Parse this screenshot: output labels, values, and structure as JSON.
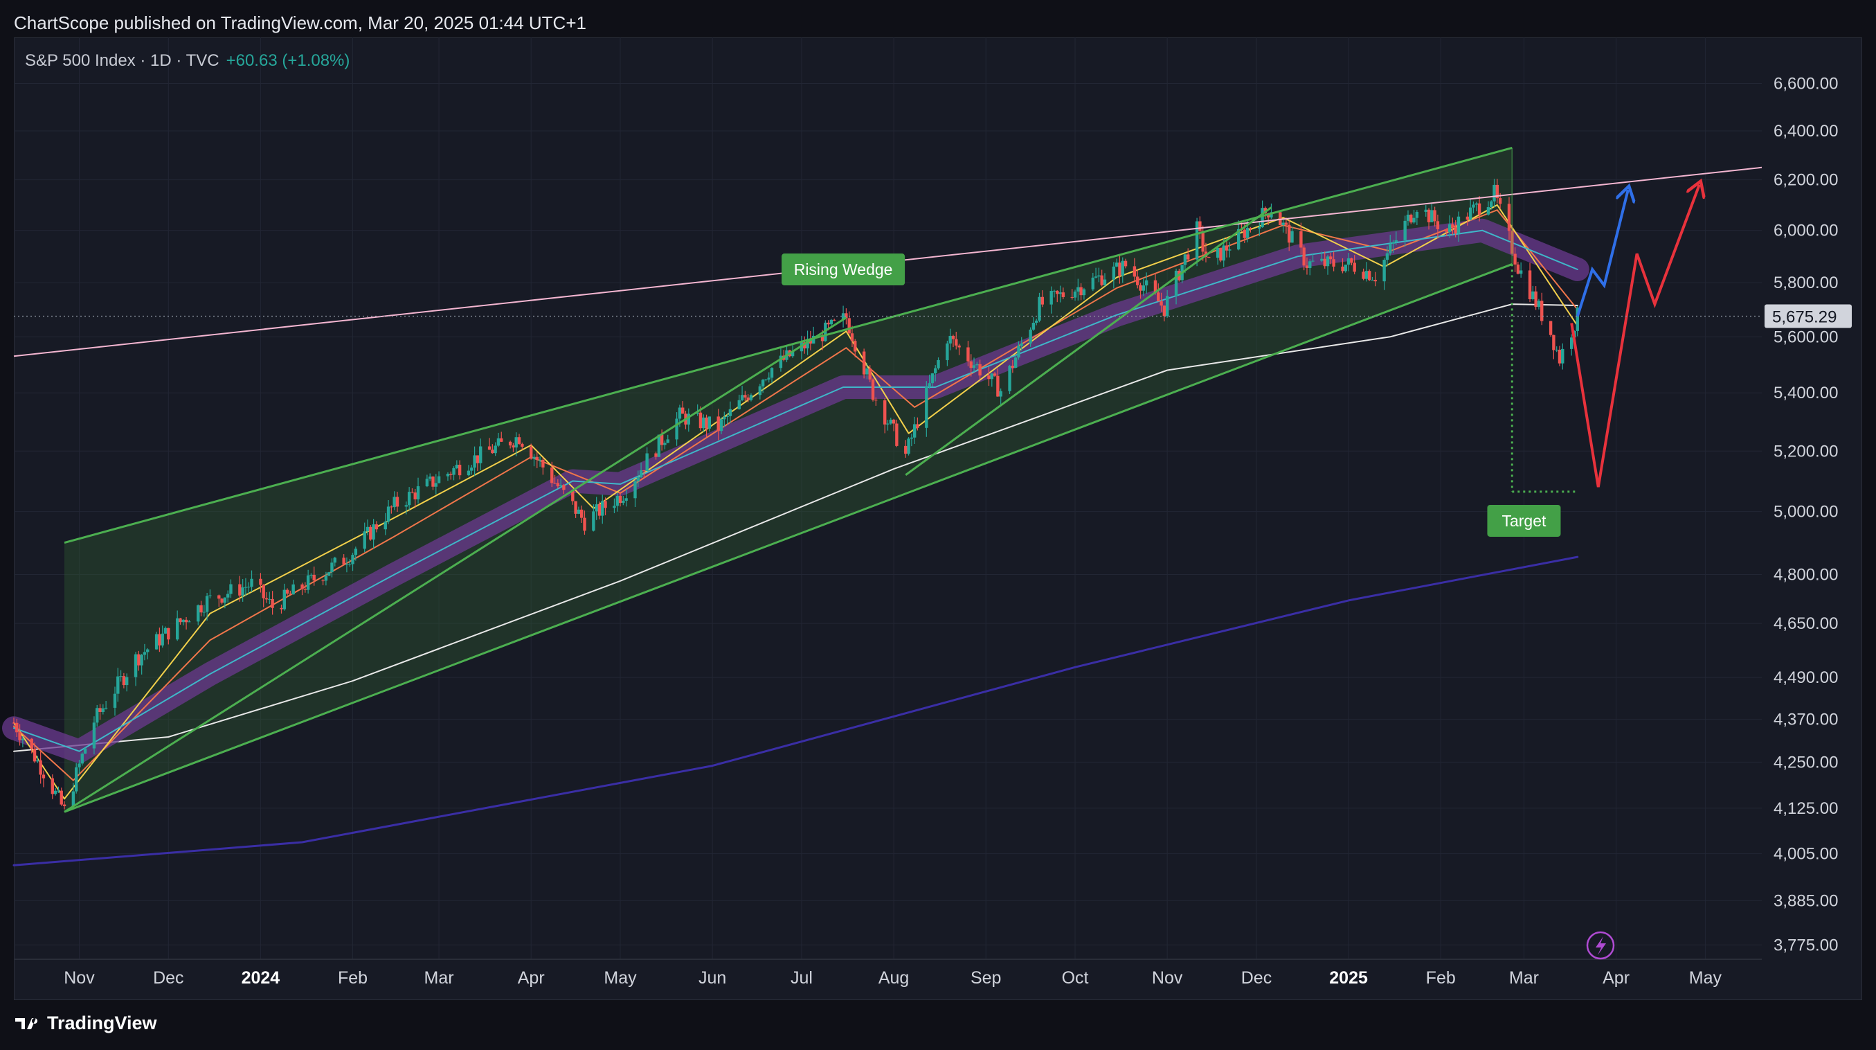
{
  "header": {
    "publish_line": "ChartScope published on TradingView.com, Mar 20, 2025 01:44 UTC+1"
  },
  "legend": {
    "symbol": "S&P 500 Index · 1D · TVC",
    "change": "+60.63 (+1.08%)"
  },
  "footer": {
    "brand": "TradingView"
  },
  "colors": {
    "up": "#26a69a",
    "down": "#ef5350",
    "wedge": "#4caf50",
    "ribbon": "#6b3a8f",
    "ema_fast": "#f2d04b",
    "ema_mid": "#f0764a",
    "ema_cyan": "#3fb7c9",
    "sma_white": "#e8e8e8",
    "sma_long": "#3a2ea5",
    "trend_pink": "#f4b6d1",
    "projection_up": "#2f6fe8",
    "projection_down": "#e8323c",
    "price_tag_bg": "#d1d4dc",
    "label_bg": "#43a047",
    "bolt": "#b04bd3"
  },
  "chart_data": {
    "type": "candlestick",
    "symbol": "S&P 500 Index",
    "interval": "1D",
    "scale": "log",
    "grid": true,
    "last_price": 5675.29,
    "last_price_label": "5,675.29",
    "x_ticks": [
      {
        "date": "2023-11-01",
        "label": "Nov",
        "bold": false
      },
      {
        "date": "2023-12-01",
        "label": "Dec",
        "bold": false
      },
      {
        "date": "2024-01-01",
        "label": "2024",
        "bold": true
      },
      {
        "date": "2024-02-01",
        "label": "Feb",
        "bold": false
      },
      {
        "date": "2024-03-01",
        "label": "Mar",
        "bold": false
      },
      {
        "date": "2024-04-01",
        "label": "Apr",
        "bold": false
      },
      {
        "date": "2024-05-01",
        "label": "May",
        "bold": false
      },
      {
        "date": "2024-06-01",
        "label": "Jun",
        "bold": false
      },
      {
        "date": "2024-07-01",
        "label": "Jul",
        "bold": false
      },
      {
        "date": "2024-08-01",
        "label": "Aug",
        "bold": false
      },
      {
        "date": "2024-09-01",
        "label": "Sep",
        "bold": false
      },
      {
        "date": "2024-10-01",
        "label": "Oct",
        "bold": false
      },
      {
        "date": "2024-11-01",
        "label": "Nov",
        "bold": false
      },
      {
        "date": "2024-12-01",
        "label": "Dec",
        "bold": false
      },
      {
        "date": "2025-01-01",
        "label": "2025",
        "bold": true
      },
      {
        "date": "2025-02-01",
        "label": "Feb",
        "bold": false
      },
      {
        "date": "2025-03-01",
        "label": "Mar",
        "bold": false
      },
      {
        "date": "2025-04-01",
        "label": "Apr",
        "bold": false
      },
      {
        "date": "2025-05-01",
        "label": "May",
        "bold": false
      }
    ],
    "y_ticks": [
      {
        "value": 6600,
        "label": "6,600.00"
      },
      {
        "value": 6400,
        "label": "6,400.00"
      },
      {
        "value": 6200,
        "label": "6,200.00"
      },
      {
        "value": 6000,
        "label": "6,000.00"
      },
      {
        "value": 5800,
        "label": "5,800.00"
      },
      {
        "value": 5600,
        "label": "5,600.00"
      },
      {
        "value": 5400,
        "label": "5,400.00"
      },
      {
        "value": 5200,
        "label": "5,200.00"
      },
      {
        "value": 5000,
        "label": "5,000.00"
      },
      {
        "value": 4800,
        "label": "4,800.00"
      },
      {
        "value": 4650,
        "label": "4,650.00"
      },
      {
        "value": 4490,
        "label": "4,490.00"
      },
      {
        "value": 4370,
        "label": "4,370.00"
      },
      {
        "value": 4250,
        "label": "4,250.00"
      },
      {
        "value": 4125,
        "label": "4,125.00"
      },
      {
        "value": 4005,
        "label": "4,005.00"
      },
      {
        "value": 3885,
        "label": "3,885.00"
      },
      {
        "value": 3775,
        "label": "3,775.00"
      }
    ],
    "close_path": [
      {
        "date": "2023-10-10",
        "value": 4360
      },
      {
        "date": "2023-10-20",
        "value": 4225
      },
      {
        "date": "2023-10-27",
        "value": 4117
      },
      {
        "date": "2023-11-06",
        "value": 4365
      },
      {
        "date": "2023-11-20",
        "value": 4545
      },
      {
        "date": "2023-12-14",
        "value": 4720
      },
      {
        "date": "2023-12-29",
        "value": 4770
      },
      {
        "date": "2024-01-05",
        "value": 4700
      },
      {
        "date": "2024-01-31",
        "value": 4860
      },
      {
        "date": "2024-02-15",
        "value": 5020
      },
      {
        "date": "2024-03-08",
        "value": 5150
      },
      {
        "date": "2024-03-28",
        "value": 5250
      },
      {
        "date": "2024-04-19",
        "value": 4967
      },
      {
        "date": "2024-05-02",
        "value": 5060
      },
      {
        "date": "2024-05-21",
        "value": 5320
      },
      {
        "date": "2024-06-03",
        "value": 5280
      },
      {
        "date": "2024-06-20",
        "value": 5480
      },
      {
        "date": "2024-07-16",
        "value": 5670
      },
      {
        "date": "2024-07-25",
        "value": 5400
      },
      {
        "date": "2024-08-05",
        "value": 5186
      },
      {
        "date": "2024-08-19",
        "value": 5600
      },
      {
        "date": "2024-09-06",
        "value": 5408
      },
      {
        "date": "2024-09-19",
        "value": 5715
      },
      {
        "date": "2024-10-18",
        "value": 5865
      },
      {
        "date": "2024-10-31",
        "value": 5705
      },
      {
        "date": "2024-11-11",
        "value": 6001
      },
      {
        "date": "2024-11-15",
        "value": 5870
      },
      {
        "date": "2024-12-06",
        "value": 6090
      },
      {
        "date": "2024-12-18",
        "value": 5872
      },
      {
        "date": "2025-01-02",
        "value": 5869
      },
      {
        "date": "2025-01-10",
        "value": 5827
      },
      {
        "date": "2025-01-24",
        "value": 6101
      },
      {
        "date": "2025-02-03",
        "value": 5995
      },
      {
        "date": "2025-02-19",
        "value": 6144
      },
      {
        "date": "2025-02-27",
        "value": 5861
      },
      {
        "date": "2025-03-10",
        "value": 5614
      },
      {
        "date": "2025-03-13",
        "value": 5521
      },
      {
        "date": "2025-03-19",
        "value": 5675
      }
    ],
    "wedge_lines": [
      {
        "from": {
          "date": "2023-10-27",
          "value": 4900
        },
        "to": {
          "date": "2025-02-25",
          "value": 6330
        }
      },
      {
        "from": {
          "date": "2023-10-27",
          "value": 4115
        },
        "to": {
          "date": "2025-02-25",
          "value": 5870
        }
      },
      {
        "from": {
          "date": "2023-10-27",
          "value": 4115
        },
        "to": {
          "date": "2024-07-16",
          "value": 5670
        }
      },
      {
        "from": {
          "date": "2024-08-05",
          "value": 5120
        },
        "to": {
          "date": "2024-12-06",
          "value": 6090
        }
      }
    ],
    "trend_line": {
      "from": {
        "date": "2023-10-10",
        "value": 5530
      },
      "to": {
        "date": "2025-05-20",
        "value": 6250
      }
    },
    "annotations": [
      {
        "label": "Rising Wedge",
        "date": "2024-07-15",
        "value": 5850
      },
      {
        "label": "Target",
        "date": "2025-03-01",
        "value": 4970
      }
    ],
    "target_level": {
      "from": {
        "date": "2025-02-25",
        "value": 5065
      },
      "to": {
        "date": "2025-03-19",
        "value": 5065
      }
    },
    "projections": [
      {
        "name": "bull",
        "points": [
          {
            "date": "2025-03-19",
            "value": 5675
          },
          {
            "date": "2025-03-24",
            "value": 5850
          },
          {
            "date": "2025-03-28",
            "value": 5790
          },
          {
            "date": "2025-04-05",
            "value": 6160
          }
        ]
      },
      {
        "name": "bear",
        "points": [
          {
            "date": "2025-03-17",
            "value": 5650
          },
          {
            "date": "2025-03-26",
            "value": 5080
          },
          {
            "date": "2025-04-08",
            "value": 5910
          },
          {
            "date": "2025-04-14",
            "value": 5720
          },
          {
            "date": "2025-04-29",
            "value": 6180
          }
        ]
      }
    ],
    "ma_lines": [
      {
        "name": "sma_long",
        "points": [
          {
            "date": "2023-10-10",
            "value": 3975
          },
          {
            "date": "2024-01-15",
            "value": 4035
          },
          {
            "date": "2024-06-01",
            "value": 4240
          },
          {
            "date": "2024-10-01",
            "value": 4520
          },
          {
            "date": "2025-01-01",
            "value": 4720
          },
          {
            "date": "2025-03-19",
            "value": 4855
          }
        ]
      },
      {
        "name": "sma_white",
        "points": [
          {
            "date": "2023-10-10",
            "value": 4280
          },
          {
            "date": "2023-12-01",
            "value": 4320
          },
          {
            "date": "2024-02-01",
            "value": 4480
          },
          {
            "date": "2024-05-01",
            "value": 4780
          },
          {
            "date": "2024-08-01",
            "value": 5140
          },
          {
            "date": "2024-11-01",
            "value": 5480
          },
          {
            "date": "2025-01-15",
            "value": 5600
          },
          {
            "date": "2025-02-25",
            "value": 5720
          },
          {
            "date": "2025-03-19",
            "value": 5715
          }
        ]
      },
      {
        "name": "ribbon",
        "points": [
          {
            "date": "2023-10-10",
            "value": 4345
          },
          {
            "date": "2023-11-01",
            "value": 4280
          },
          {
            "date": "2023-12-15",
            "value": 4500
          },
          {
            "date": "2024-02-15",
            "value": 4800
          },
          {
            "date": "2024-04-15",
            "value": 5100
          },
          {
            "date": "2024-05-01",
            "value": 5090
          },
          {
            "date": "2024-07-15",
            "value": 5420
          },
          {
            "date": "2024-08-15",
            "value": 5420
          },
          {
            "date": "2024-10-15",
            "value": 5680
          },
          {
            "date": "2024-12-15",
            "value": 5900
          },
          {
            "date": "2025-02-15",
            "value": 6000
          },
          {
            "date": "2025-03-19",
            "value": 5850
          }
        ]
      },
      {
        "name": "ema_mid",
        "points": [
          {
            "date": "2023-10-10",
            "value": 4350
          },
          {
            "date": "2023-10-30",
            "value": 4200
          },
          {
            "date": "2023-12-15",
            "value": 4600
          },
          {
            "date": "2024-02-15",
            "value": 4920
          },
          {
            "date": "2024-04-01",
            "value": 5180
          },
          {
            "date": "2024-05-01",
            "value": 5060
          },
          {
            "date": "2024-07-16",
            "value": 5560
          },
          {
            "date": "2024-08-08",
            "value": 5350
          },
          {
            "date": "2024-10-15",
            "value": 5780
          },
          {
            "date": "2024-12-10",
            "value": 6020
          },
          {
            "date": "2025-01-15",
            "value": 5920
          },
          {
            "date": "2025-02-20",
            "value": 6080
          },
          {
            "date": "2025-03-19",
            "value": 5700
          }
        ]
      },
      {
        "name": "ema_fast",
        "points": [
          {
            "date": "2023-10-10",
            "value": 4360
          },
          {
            "date": "2023-10-27",
            "value": 4150
          },
          {
            "date": "2023-12-15",
            "value": 4680
          },
          {
            "date": "2024-02-15",
            "value": 4980
          },
          {
            "date": "2024-04-01",
            "value": 5220
          },
          {
            "date": "2024-04-22",
            "value": 5010
          },
          {
            "date": "2024-07-16",
            "value": 5620
          },
          {
            "date": "2024-08-06",
            "value": 5260
          },
          {
            "date": "2024-10-15",
            "value": 5820
          },
          {
            "date": "2024-12-10",
            "value": 6050
          },
          {
            "date": "2025-01-13",
            "value": 5860
          },
          {
            "date": "2025-02-20",
            "value": 6100
          },
          {
            "date": "2025-03-19",
            "value": 5640
          }
        ]
      },
      {
        "name": "ema_cyan",
        "points": [
          {
            "date": "2023-10-10",
            "value": 4345
          },
          {
            "date": "2023-11-01",
            "value": 4280
          },
          {
            "date": "2023-12-15",
            "value": 4500
          },
          {
            "date": "2024-02-15",
            "value": 4800
          },
          {
            "date": "2024-04-15",
            "value": 5100
          },
          {
            "date": "2024-05-01",
            "value": 5090
          },
          {
            "date": "2024-07-15",
            "value": 5420
          },
          {
            "date": "2024-08-15",
            "value": 5420
          },
          {
            "date": "2024-10-15",
            "value": 5680
          },
          {
            "date": "2024-12-15",
            "value": 5900
          },
          {
            "date": "2025-02-15",
            "value": 6000
          },
          {
            "date": "2025-03-19",
            "value": 5850
          }
        ]
      }
    ]
  }
}
